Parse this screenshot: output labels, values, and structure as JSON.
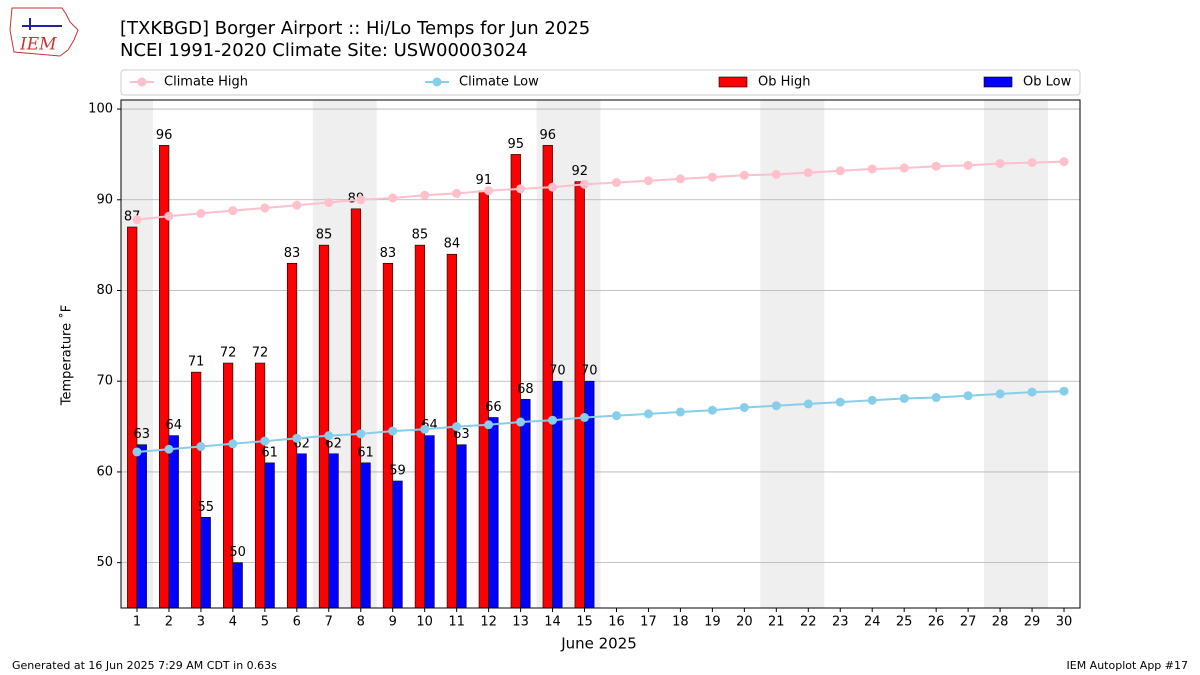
{
  "chart_data": {
    "type": "bar_line",
    "title": "[TXKBGD] Borger Airport :: Hi/Lo Temps for Jun 2025",
    "subtitle": "NCEI 1991-2020 Climate Site: USW00003024",
    "logo_text": "IEM",
    "xlabel": "June 2025",
    "ylabel": "Temperature ˚F",
    "footer_left": "Generated at 16 Jun 2025 7:29 AM CDT in 0.63s",
    "footer_right": "IEM Autoplot App #17",
    "x": [
      1,
      2,
      3,
      4,
      5,
      6,
      7,
      8,
      9,
      10,
      11,
      12,
      13,
      14,
      15,
      16,
      17,
      18,
      19,
      20,
      21,
      22,
      23,
      24,
      25,
      26,
      27,
      28,
      29,
      30
    ],
    "xlim": [
      0.5,
      30.5
    ],
    "xticks": [
      1,
      2,
      3,
      4,
      5,
      6,
      7,
      8,
      9,
      10,
      11,
      12,
      13,
      14,
      15,
      16,
      17,
      18,
      19,
      20,
      21,
      22,
      23,
      24,
      25,
      26,
      27,
      28,
      29,
      30
    ],
    "ylim": [
      45,
      101
    ],
    "yticks": [
      50,
      60,
      70,
      80,
      90,
      100
    ],
    "grid": true,
    "shaded": [
      [
        0.5,
        1.5
      ],
      [
        6.5,
        8.5
      ],
      [
        13.5,
        15.5
      ],
      [
        20.5,
        22.5
      ],
      [
        27.5,
        29.5
      ]
    ],
    "series": [
      {
        "name": "Climate High",
        "type": "line",
        "color": "#ffc0cb",
        "values": [
          87.8,
          88.2,
          88.5,
          88.8,
          89.1,
          89.4,
          89.7,
          90.0,
          90.2,
          90.5,
          90.7,
          91.0,
          91.2,
          91.4,
          91.7,
          91.9,
          92.1,
          92.3,
          92.5,
          92.7,
          92.8,
          93.0,
          93.2,
          93.4,
          93.5,
          93.7,
          93.8,
          94.0,
          94.1,
          94.2
        ]
      },
      {
        "name": "Climate Low",
        "type": "line",
        "color": "#87ceeb",
        "values": [
          62.2,
          62.5,
          62.8,
          63.1,
          63.4,
          63.7,
          64.0,
          64.2,
          64.5,
          64.7,
          65.0,
          65.2,
          65.5,
          65.7,
          66.0,
          66.2,
          66.4,
          66.6,
          66.8,
          67.1,
          67.3,
          67.5,
          67.7,
          67.9,
          68.1,
          68.2,
          68.4,
          68.6,
          68.8,
          68.9
        ]
      },
      {
        "name": "Ob High",
        "type": "bar",
        "color": "#ff0000",
        "values": [
          87,
          96,
          71,
          72,
          72,
          83,
          85,
          89,
          83,
          85,
          84,
          91,
          95,
          96,
          92,
          null,
          null,
          null,
          null,
          null,
          null,
          null,
          null,
          null,
          null,
          null,
          null,
          null,
          null,
          null
        ]
      },
      {
        "name": "Ob Low",
        "type": "bar",
        "color": "#0000ff",
        "values": [
          63,
          64,
          55,
          50,
          61,
          62,
          62,
          61,
          59,
          64,
          63,
          66,
          68,
          70,
          70,
          null,
          null,
          null,
          null,
          null,
          null,
          null,
          null,
          null,
          null,
          null,
          null,
          null,
          null,
          null
        ]
      }
    ]
  }
}
